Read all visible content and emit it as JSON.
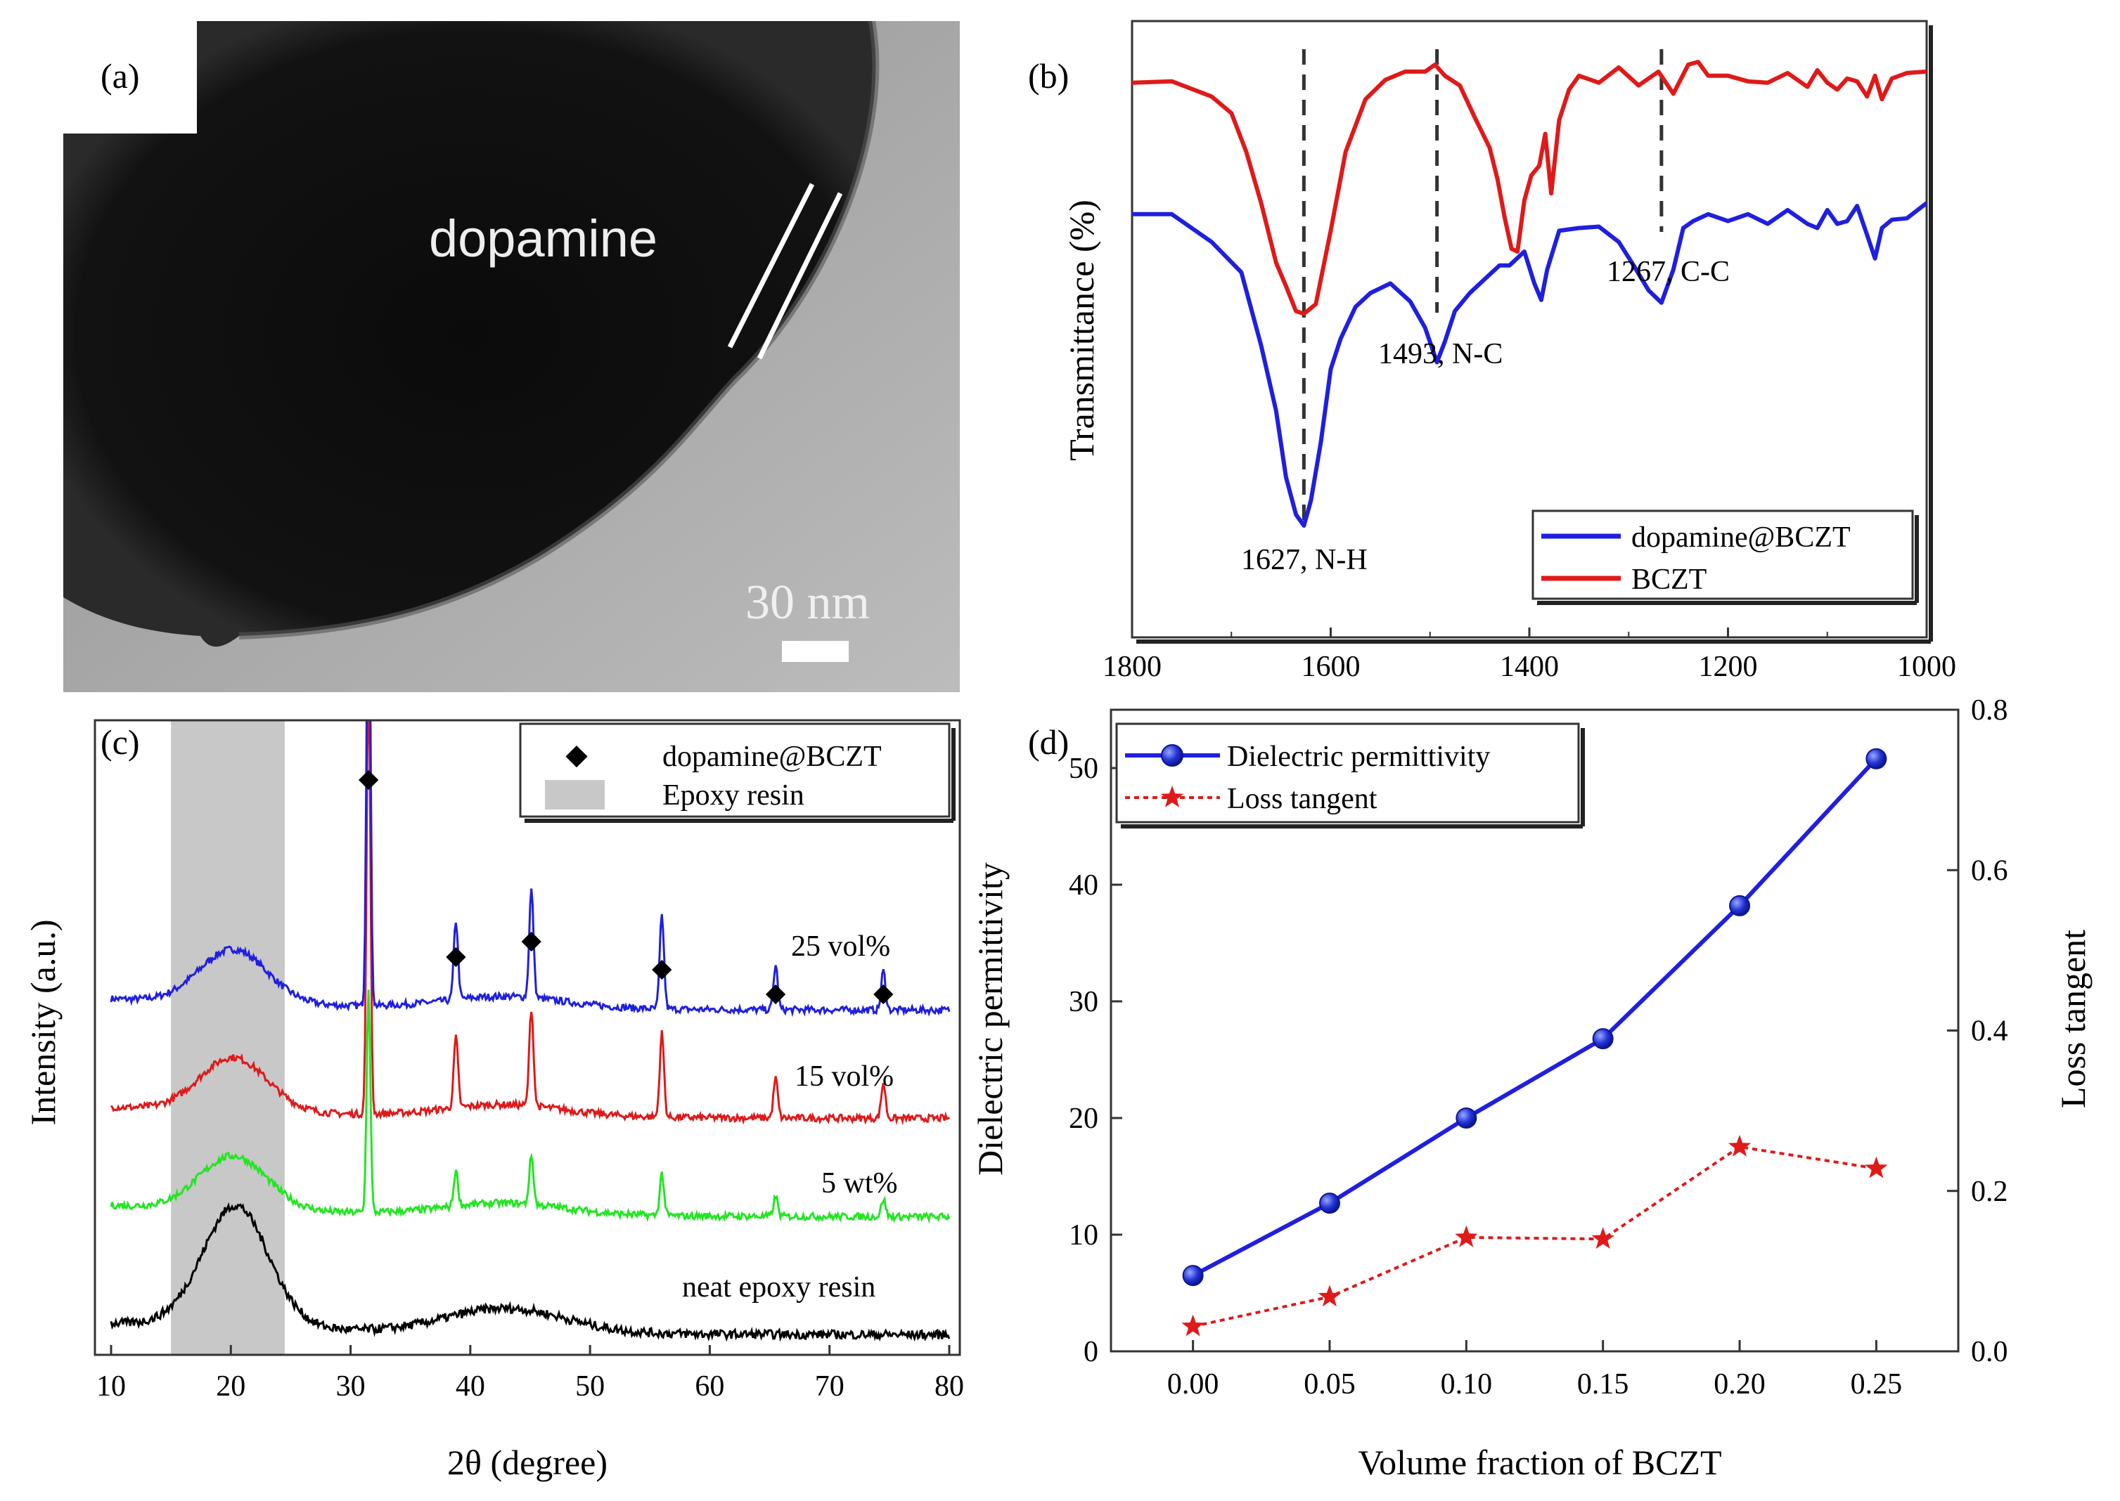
{
  "figure": {
    "panels": [
      "(a)",
      "(b)",
      "(c)",
      "(d)"
    ]
  },
  "panel_a": {
    "label": "(a)",
    "image_text": "dopamine",
    "scale_bar": "30 nm"
  },
  "colors": {
    "blue": "#1f1fe0",
    "red": "#e01919",
    "green": "#22e622",
    "black": "#000000",
    "gray_band": "#c8c8c8",
    "axis": "#333333"
  },
  "chart_data": [
    {
      "panel": "(b)",
      "type": "line",
      "title": "",
      "xlabel": "",
      "ylabel": "Transmittance (%)",
      "xlim": [
        1800,
        1000
      ],
      "x_ticks": [
        1800,
        1600,
        1400,
        1200,
        1000
      ],
      "x_tick_labels": [
        "1800",
        "1600",
        "1400",
        "1200",
        "1000"
      ],
      "legend": [
        "dopamine@BCZT",
        "BCZT"
      ],
      "legend_position": "bottom-right",
      "series": [
        {
          "name": "dopamine@BCZT",
          "color": "#1f1fe0",
          "x": [
            1800,
            1760,
            1720,
            1690,
            1670,
            1655,
            1645,
            1635,
            1627,
            1620,
            1610,
            1600,
            1590,
            1575,
            1560,
            1540,
            1520,
            1505,
            1493,
            1485,
            1475,
            1460,
            1445,
            1430,
            1420,
            1405,
            1395,
            1388,
            1382,
            1370,
            1350,
            1330,
            1310,
            1295,
            1280,
            1267,
            1255,
            1245,
            1235,
            1220,
            1200,
            1180,
            1160,
            1140,
            1120,
            1110,
            1100,
            1090,
            1080,
            1070,
            1060,
            1052,
            1045,
            1035,
            1020,
            1000
          ],
          "y": [
            2.25,
            2.22,
            2.05,
            1.8,
            1.3,
            0.8,
            0.35,
            0.05,
            0.0,
            0.15,
            0.6,
            1.1,
            1.35,
            1.55,
            1.68,
            1.72,
            1.62,
            1.4,
            1.18,
            1.3,
            1.55,
            1.65,
            1.78,
            1.85,
            1.88,
            1.95,
            1.75,
            1.6,
            1.85,
            2.1,
            2.15,
            2.13,
            2.05,
            1.85,
            1.7,
            1.58,
            1.85,
            2.12,
            2.2,
            2.22,
            2.2,
            2.22,
            2.18,
            2.25,
            2.18,
            2.12,
            2.28,
            2.15,
            2.2,
            2.28,
            2.1,
            1.9,
            2.15,
            2.18,
            2.22,
            2.3
          ]
        },
        {
          "name": "BCZT",
          "color": "#e01919",
          "x": [
            1800,
            1760,
            1720,
            1700,
            1685,
            1670,
            1655,
            1645,
            1635,
            1627,
            1615,
            1600,
            1585,
            1565,
            1545,
            1525,
            1505,
            1495,
            1485,
            1470,
            1455,
            1440,
            1432,
            1425,
            1418,
            1412,
            1405,
            1398,
            1390,
            1384,
            1378,
            1370,
            1360,
            1350,
            1330,
            1310,
            1290,
            1270,
            1255,
            1240,
            1230,
            1220,
            1200,
            1180,
            1160,
            1140,
            1120,
            1110,
            1100,
            1090,
            1080,
            1070,
            1060,
            1052,
            1045,
            1035,
            1020,
            1000
          ],
          "y": [
            3.2,
            3.18,
            3.1,
            2.95,
            2.7,
            2.3,
            1.9,
            1.7,
            1.55,
            1.5,
            1.6,
            2.1,
            2.7,
            3.05,
            3.22,
            3.25,
            3.28,
            3.3,
            3.25,
            3.15,
            2.95,
            2.7,
            2.5,
            2.2,
            2.0,
            1.95,
            2.35,
            2.5,
            2.6,
            2.8,
            2.4,
            2.9,
            3.15,
            3.22,
            3.2,
            3.28,
            3.18,
            3.25,
            3.12,
            3.3,
            3.35,
            3.22,
            3.25,
            3.18,
            3.2,
            3.24,
            3.17,
            3.26,
            3.2,
            3.12,
            3.23,
            3.18,
            3.1,
            3.22,
            3.08,
            3.2,
            3.27,
            3.25
          ]
        }
      ],
      "annotations": [
        {
          "x": 1627,
          "text": "1627, N-H"
        },
        {
          "x": 1493,
          "text": "1493, N-C"
        },
        {
          "x": 1267,
          "text": "1267, C-C"
        }
      ]
    },
    {
      "panel": "(c)",
      "type": "line",
      "title": "",
      "xlabel": "2θ (degree)",
      "ylabel": "Intensity (a.u.)",
      "xlim": [
        10,
        80
      ],
      "x_ticks": [
        10,
        20,
        30,
        40,
        50,
        60,
        70,
        80
      ],
      "x_tick_labels": [
        "10",
        "20",
        "30",
        "40",
        "50",
        "60",
        "70",
        "80"
      ],
      "legend": [
        "dopamine@BCZT",
        "Epoxy resin"
      ],
      "legend_position": "top-right",
      "shaded_band_2theta": [
        15,
        24.5
      ],
      "peak_markers_2theta": [
        31.5,
        38.8,
        45.1,
        56.0,
        65.5,
        74.5
      ],
      "series": [
        {
          "name": "25 vol%",
          "color": "#1f1fe0",
          "offset": 3.3,
          "peak_scale": 1.0
        },
        {
          "name": "15 vol%",
          "color": "#e01919",
          "offset": 2.2,
          "peak_scale": 0.9
        },
        {
          "name": "5 wt%",
          "color": "#22e622",
          "offset": 1.2,
          "peak_scale": 0.45
        },
        {
          "name": "neat epoxy resin",
          "color": "#000000",
          "offset": 0.0,
          "peak_scale": 0.0
        }
      ],
      "series_labels": [
        "25 vol%",
        "15 vol%",
        "5 wt%",
        "neat epoxy resin"
      ]
    },
    {
      "panel": "(d)",
      "type": "line",
      "title": "",
      "xlabel": "Volume fraction of BCZT",
      "ylabel": "Dielectric permittivity",
      "y2label": "Loss tangent",
      "xlim": [
        -0.03,
        0.28
      ],
      "ylim": [
        0,
        55
      ],
      "y2lim": [
        0,
        0.8
      ],
      "x_ticks": [
        0.0,
        0.05,
        0.1,
        0.15,
        0.2,
        0.25
      ],
      "x_tick_labels": [
        "0.00",
        "0.05",
        "0.10",
        "0.15",
        "0.20",
        "0.25"
      ],
      "y_ticks": [
        0,
        10,
        20,
        30,
        40,
        50
      ],
      "y_tick_labels": [
        "0",
        "10",
        "20",
        "30",
        "40",
        "50"
      ],
      "y2_ticks": [
        0.0,
        0.2,
        0.4,
        0.6,
        0.8
      ],
      "y2_tick_labels": [
        "0.0",
        "0.2",
        "0.4",
        "0.6",
        "0.8"
      ],
      "legend": [
        "Dielectric permittivity",
        "Loss tangent"
      ],
      "legend_position": "top-left",
      "categories": [
        0.0,
        0.05,
        0.1,
        0.15,
        0.2,
        0.25
      ],
      "series": [
        {
          "name": "Dielectric permittivity",
          "axis": "left",
          "color": "#1f1fe0",
          "values": [
            6.5,
            12.7,
            20.0,
            26.8,
            38.2,
            50.8
          ]
        },
        {
          "name": "Loss tangent",
          "axis": "right",
          "color": "#e01919",
          "values": [
            0.031,
            0.068,
            0.142,
            0.14,
            0.255,
            0.228
          ]
        }
      ]
    }
  ]
}
